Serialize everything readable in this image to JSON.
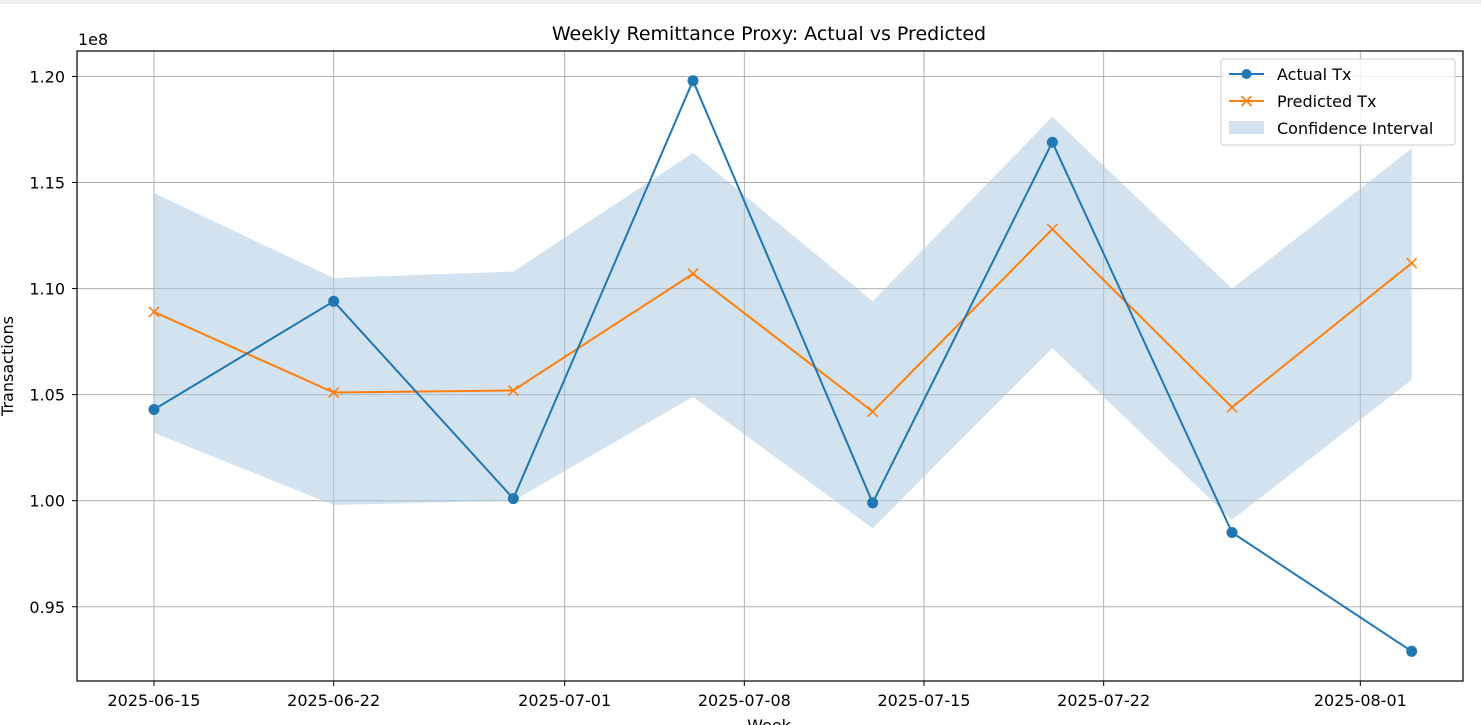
{
  "chart_data": {
    "type": "line",
    "title": "Weekly Remittance Proxy: Actual vs Predicted",
    "xlabel": "Week",
    "ylabel": "Transactions",
    "y_offset_label": "1e8",
    "ylim": [
      0.915,
      1.212
    ],
    "xlim": [
      "2025-06-12",
      "2025-08-05"
    ],
    "grid": true,
    "legend_placement": "top-right",
    "x_ticks": [
      "2025-06-15",
      "2025-06-22",
      "2025-07-01",
      "2025-07-08",
      "2025-07-15",
      "2025-07-22",
      "2025-08-01"
    ],
    "y_ticks": [
      0.95,
      1.0,
      1.05,
      1.1,
      1.15,
      1.2
    ],
    "y_tick_labels": [
      "0.95",
      "1.00",
      "1.05",
      "1.10",
      "1.15",
      "1.20"
    ],
    "x": [
      "2025-06-15",
      "2025-06-22",
      "2025-06-29",
      "2025-07-06",
      "2025-07-13",
      "2025-07-20",
      "2025-07-27",
      "2025-08-03"
    ],
    "series": [
      {
        "name": "Actual Tx",
        "color": "#1f77b4",
        "marker": "circle",
        "values": [
          1.043,
          1.094,
          1.001,
          1.198,
          0.999,
          1.169,
          0.985,
          0.929
        ]
      },
      {
        "name": "Predicted Tx",
        "color": "#ff7f0e",
        "marker": "x",
        "values": [
          1.089,
          1.051,
          1.052,
          1.107,
          1.042,
          1.128,
          1.044,
          1.112
        ]
      }
    ],
    "confidence_interval": {
      "name": "Confidence Interval",
      "color": "#a6c8e0",
      "lower": [
        1.032,
        0.998,
        1.0,
        1.049,
        0.987,
        1.072,
        0.991,
        1.057
      ],
      "upper": [
        1.145,
        1.105,
        1.108,
        1.164,
        1.094,
        1.181,
        1.1,
        1.166
      ]
    }
  }
}
